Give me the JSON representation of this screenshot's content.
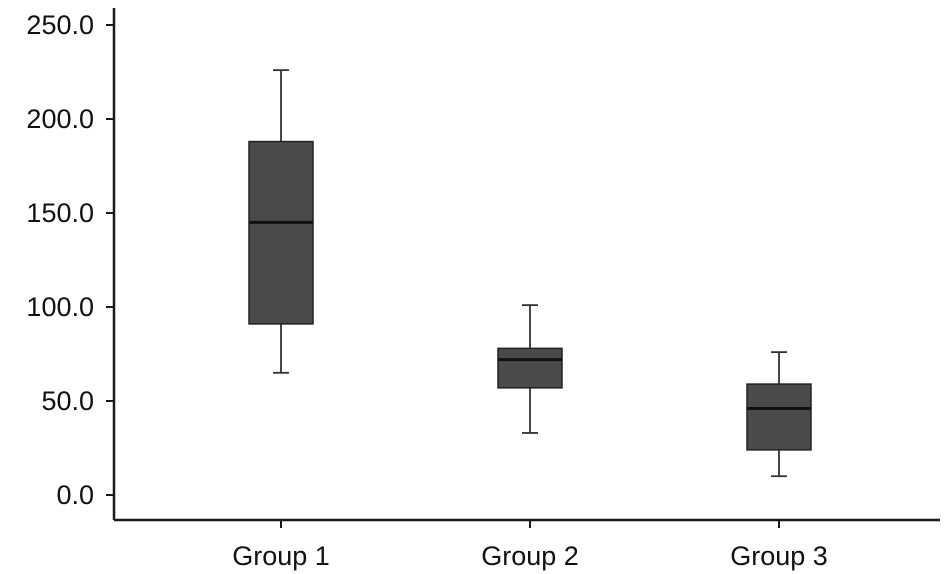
{
  "chart_data": {
    "type": "box",
    "title": "",
    "xlabel": "",
    "ylabel": "",
    "ylim": [
      0,
      250
    ],
    "yticks": [
      0,
      50,
      100,
      150,
      200,
      250
    ],
    "ytick_labels": [
      "0.0",
      "50.0",
      "100.0",
      "150.0",
      "200.0",
      "250.0"
    ],
    "grid": false,
    "categories": [
      "Group 1",
      "Group 2",
      "Group 3"
    ],
    "boxes": [
      {
        "category": "Group 1",
        "min": 65,
        "q1": 91,
        "median": 145,
        "q3": 188,
        "max": 226
      },
      {
        "category": "Group 2",
        "min": 33,
        "q1": 57,
        "median": 72,
        "q3": 78,
        "max": 101
      },
      {
        "category": "Group 3",
        "min": 10,
        "q1": 24,
        "median": 46,
        "q3": 59,
        "max": 76
      }
    ],
    "colors": {
      "box_fill": "#4a4a4a",
      "lines": "#222222"
    }
  }
}
